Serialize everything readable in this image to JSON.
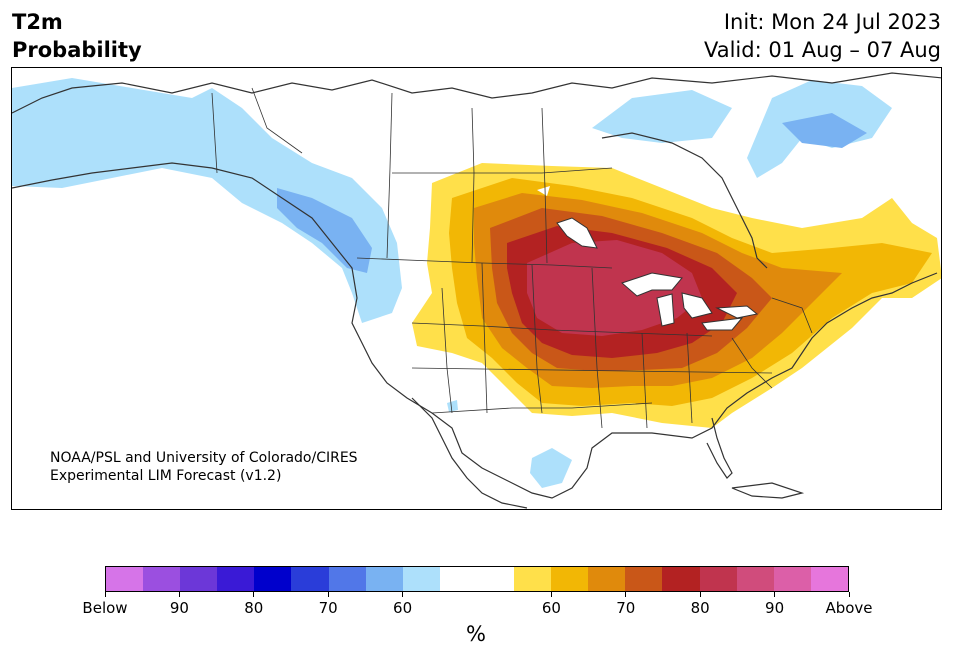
{
  "header": {
    "title_line1": "T2m",
    "title_line2": "Probability",
    "init": "Init: Mon 24 Jul 2023",
    "valid": "Valid: 01 Aug – 07 Aug"
  },
  "credit": {
    "line1": "NOAA/PSL and University of Colorado/CIRES",
    "line2": "Experimental LIM Forecast (v1.2)"
  },
  "colorbar": {
    "colors": [
      "#d674e8",
      "#9b4fe0",
      "#6c37d8",
      "#3a1ad6",
      "#0000cc",
      "#2a3dd9",
      "#5177e8",
      "#79b2f2",
      "#ade0fb",
      "#ffffff",
      "#ffffff",
      "#ffe04a",
      "#f2b705",
      "#e08a0c",
      "#c95718",
      "#b32222",
      "#c0344e",
      "#d04c7c",
      "#dc5fa8",
      "#e676dc"
    ],
    "ticks": [
      "Below",
      "90",
      "80",
      "70",
      "60",
      "60",
      "70",
      "80",
      "90",
      "Above"
    ],
    "unit": "%"
  },
  "map": {
    "below_colors": {
      "light": "#ade0fb",
      "medium": "#79b2f2"
    },
    "above_colors": {
      "p50": "#ffe04a",
      "p60": "#f2b705",
      "p65": "#e08a0c",
      "p70": "#c95718",
      "p75": "#b32222",
      "p80": "#c0344e"
    },
    "coast_color": "#333333"
  }
}
